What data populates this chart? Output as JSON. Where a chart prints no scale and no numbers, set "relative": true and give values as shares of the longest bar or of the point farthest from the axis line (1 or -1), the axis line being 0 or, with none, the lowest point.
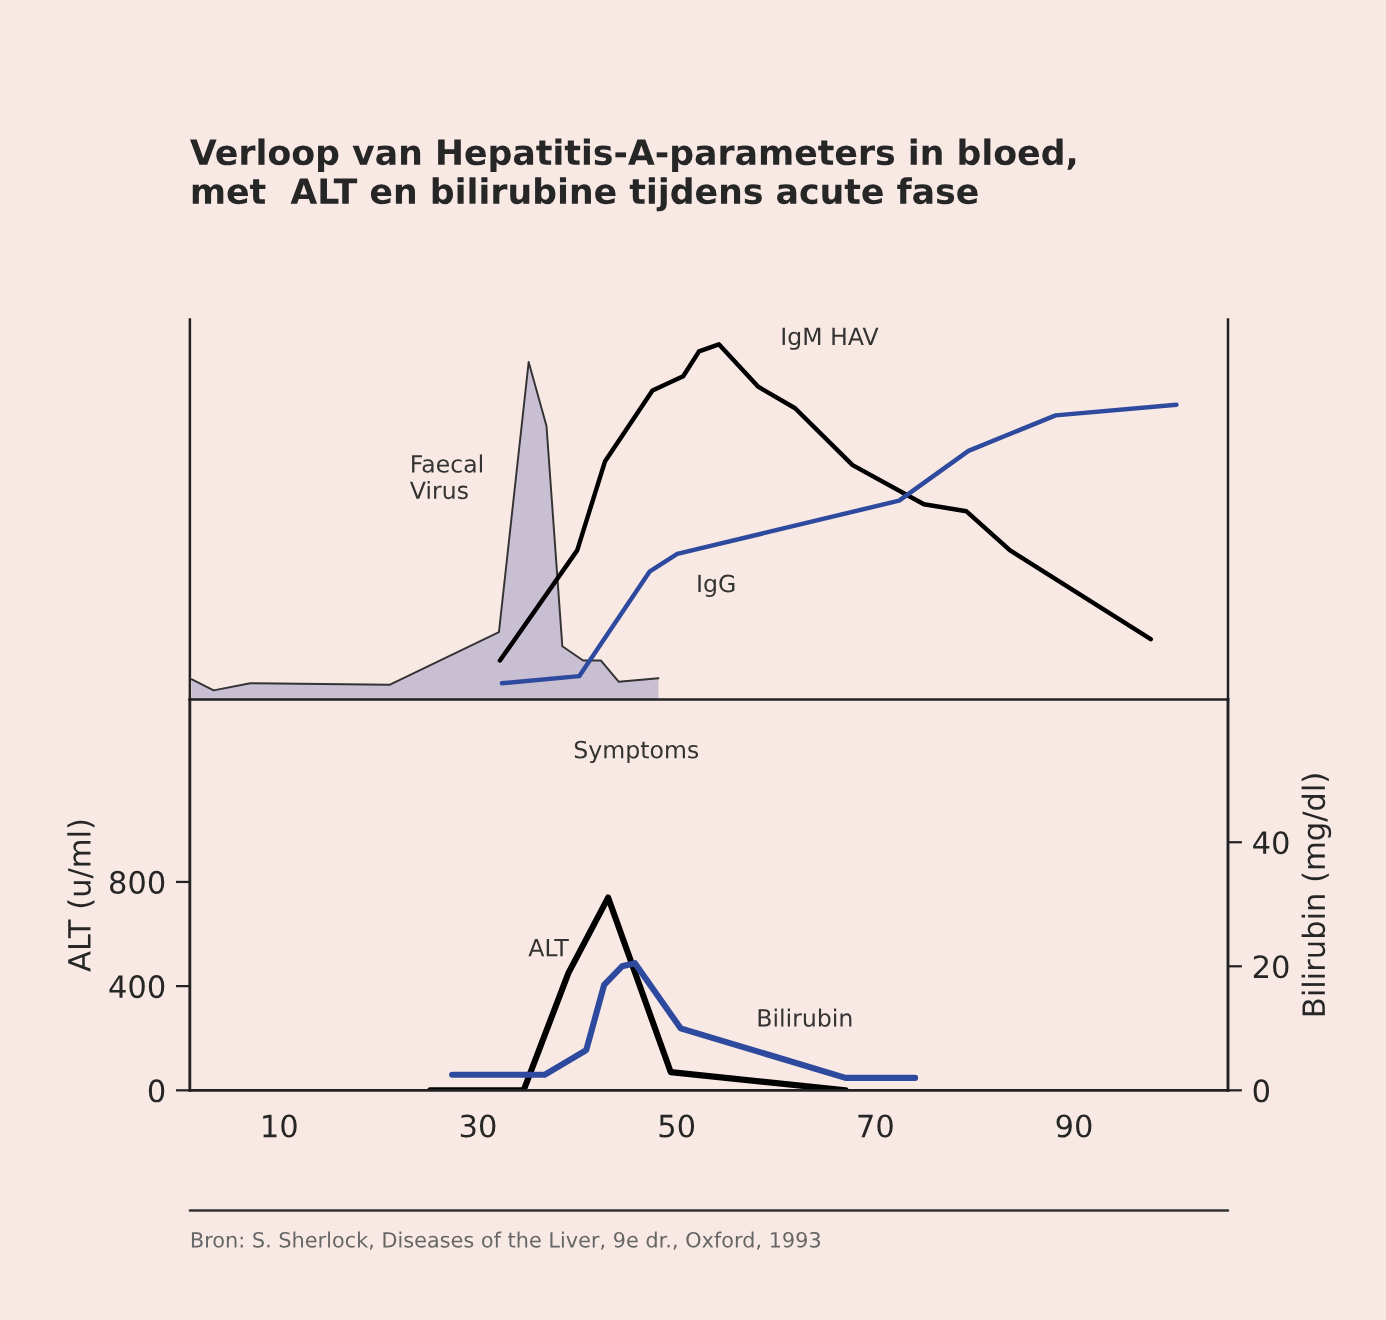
{
  "chart_data": [
    {
      "type": "line",
      "title": "Verloop van Hepatitis-A-parameters in bloed,\nmet  ALT en bilirubine tijdens acute fase",
      "relative": true,
      "xlim": [
        0.7,
        105.5
      ],
      "xticks": [
        10,
        30,
        50,
        70,
        90
      ],
      "tick_labels": false,
      "legend": false,
      "grid": false,
      "series": [
        {
          "name": "Faecal\nVirus",
          "type": "area",
          "color": "#c9bfd3",
          "x": [
            0.9,
            3.1,
            6.8,
            20.9,
            31.9,
            34.9,
            36.7,
            38.3,
            40.4,
            42.2,
            44.0,
            48.0
          ],
          "values": [
            0.057,
            0.026,
            0.046,
            0.042,
            0.19,
            0.95,
            0.77,
            0.15,
            0.11,
            0.11,
            0.05,
            0.06
          ]
        },
        {
          "name": "IgM HAV",
          "color": "#000000",
          "x": [
            32.0,
            39.8,
            42.6,
            47.4,
            50.5,
            52.1,
            54.1,
            58.1,
            61.8,
            67.6,
            74.8,
            79.1,
            83.5,
            97.7
          ],
          "values": [
            0.11,
            0.42,
            0.67,
            0.87,
            0.91,
            0.98,
            1,
            0.88,
            0.82,
            0.66,
            0.55,
            0.53,
            0.42,
            0.17
          ]
        },
        {
          "name": "IgG",
          "color": "#2e4a9e",
          "x": [
            32.2,
            40.0,
            47.1,
            49.9,
            72.3,
            79.3,
            88.1,
            100.3
          ],
          "values": [
            0.046,
            0.066,
            0.36,
            0.41,
            0.56,
            0.7,
            0.8,
            0.83
          ]
        }
      ]
    },
    {
      "type": "line",
      "xlim": [
        1,
        105.5
      ],
      "xticks": [
        10,
        30,
        50,
        70,
        90
      ],
      "ylim": [
        0,
        1500
      ],
      "yticks": [
        0,
        400,
        800
      ],
      "y2lim": [
        0,
        63
      ],
      "y2ticks": [
        0,
        20,
        40
      ],
      "ylabel": "ALT (u/ml)",
      "y2label": "Bilirubin (mg/dl)",
      "legend": false,
      "grid": false,
      "annotations": [
        "Symptoms",
        "Bron: S. Sherlock, Diseases of the Liver, 9e dr., Oxford, 1993"
      ],
      "series": [
        {
          "name": "ALT",
          "color": "#000000",
          "x": [
            25.2,
            34.6,
            39.1,
            43.1,
            49.4,
            67.0
          ],
          "values": [
            0,
            0,
            450,
            740,
            70,
            0
          ]
        },
        {
          "name": "Bilirubin",
          "axis": "y2",
          "color": "#2e4a9e",
          "x": [
            27.4,
            36.7,
            40.9,
            42.7,
            44.5,
            45.8,
            50.4,
            67.0,
            74.0
          ],
          "values": [
            2.5,
            2.5,
            6.5,
            17,
            20,
            20.5,
            10,
            2,
            2
          ]
        }
      ]
    }
  ]
}
